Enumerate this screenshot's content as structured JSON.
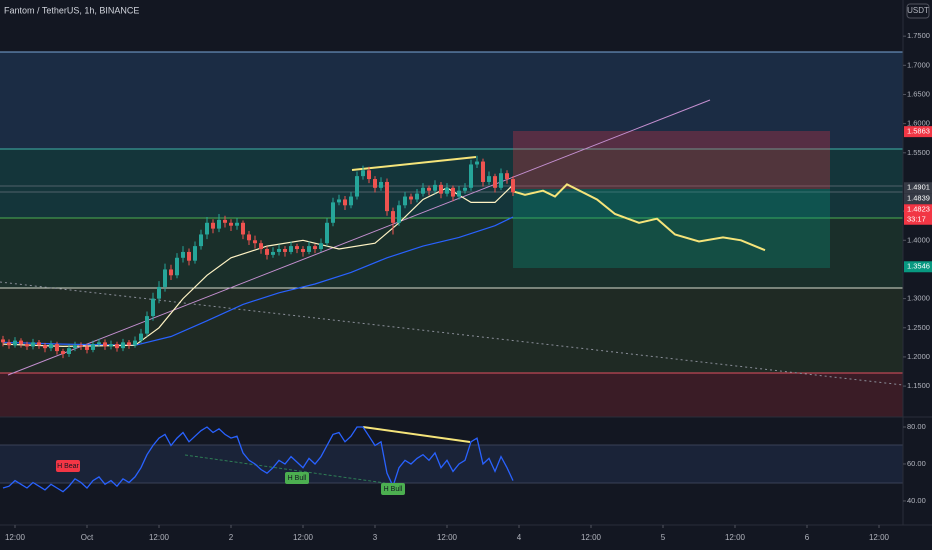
{
  "chart_data": {
    "type": "candlestick",
    "title": "Fantom / TetherUS, 1h, BINANCE",
    "currency_button": "USDT",
    "up_color": "#26a69a",
    "down_color": "#ef5350",
    "xlim": [
      -14.5,
      136
    ],
    "xticks": [
      {
        "value": -12,
        "label": "12:00"
      },
      {
        "value": 0,
        "label": "Oct"
      },
      {
        "value": 12,
        "label": "12:00"
      },
      {
        "value": 24,
        "label": "2"
      },
      {
        "value": 36,
        "label": "12:00"
      },
      {
        "value": 48,
        "label": "3"
      },
      {
        "value": 60,
        "label": "12:00"
      },
      {
        "value": 72,
        "label": "4"
      },
      {
        "value": 84,
        "label": "12:00"
      },
      {
        "value": 96,
        "label": "5"
      },
      {
        "value": 108,
        "label": "12:00"
      },
      {
        "value": 120,
        "label": "6"
      },
      {
        "value": 132,
        "label": "12:00"
      }
    ],
    "ylim": [
      1.097,
      1.812
    ],
    "yticks": [
      {
        "value": 1.75,
        "label": "1.7500"
      },
      {
        "value": 1.7,
        "label": "1.7000"
      },
      {
        "value": 1.65,
        "label": "1.6500"
      },
      {
        "value": 1.6,
        "label": "1.6000"
      },
      {
        "value": 1.55,
        "label": "1.5500"
      },
      {
        "value": 1.45,
        "label": "1.4500"
      },
      {
        "value": 1.4,
        "label": "1.4000"
      },
      {
        "value": 1.3,
        "label": "1.3000"
      },
      {
        "value": 1.25,
        "label": "1.2500"
      },
      {
        "value": 1.2,
        "label": "1.2000"
      },
      {
        "value": 1.15,
        "label": "1.1500"
      }
    ],
    "candles": [
      [
        -14,
        1.23,
        1.236,
        1.218,
        1.225
      ],
      [
        -13,
        1.225,
        1.23,
        1.214,
        1.22
      ],
      [
        -12,
        1.22,
        1.234,
        1.216,
        1.228
      ],
      [
        -11,
        1.228,
        1.232,
        1.216,
        1.222
      ],
      [
        -10,
        1.222,
        1.226,
        1.212,
        1.218
      ],
      [
        -9,
        1.218,
        1.231,
        1.213,
        1.225
      ],
      [
        -8,
        1.225,
        1.229,
        1.214,
        1.22
      ],
      [
        -7,
        1.22,
        1.224,
        1.208,
        1.215
      ],
      [
        -6,
        1.215,
        1.228,
        1.21,
        1.222
      ],
      [
        -5,
        1.222,
        1.226,
        1.204,
        1.21
      ],
      [
        -4,
        1.21,
        1.214,
        1.198,
        1.205
      ],
      [
        -3,
        1.205,
        1.221,
        1.2,
        1.215
      ],
      [
        -2,
        1.215,
        1.226,
        1.21,
        1.22
      ],
      [
        -1,
        1.22,
        1.225,
        1.212,
        1.218
      ],
      [
        0,
        1.218,
        1.222,
        1.206,
        1.212
      ],
      [
        1,
        1.212,
        1.228,
        1.208,
        1.222
      ],
      [
        2,
        1.222,
        1.231,
        1.217,
        1.225
      ],
      [
        3,
        1.225,
        1.23,
        1.212,
        1.218
      ],
      [
        4,
        1.218,
        1.228,
        1.213,
        1.222
      ],
      [
        5,
        1.222,
        1.226,
        1.209,
        1.215
      ],
      [
        6,
        1.215,
        1.231,
        1.21,
        1.225
      ],
      [
        7,
        1.225,
        1.229,
        1.214,
        1.22
      ],
      [
        8,
        1.22,
        1.235,
        1.216,
        1.228
      ],
      [
        9,
        1.228,
        1.248,
        1.224,
        1.24
      ],
      [
        10,
        1.24,
        1.278,
        1.235,
        1.27
      ],
      [
        11,
        1.27,
        1.31,
        1.262,
        1.3
      ],
      [
        12,
        1.3,
        1.33,
        1.292,
        1.32
      ],
      [
        13,
        1.32,
        1.36,
        1.312,
        1.35
      ],
      [
        14,
        1.35,
        1.358,
        1.332,
        1.34
      ],
      [
        15,
        1.34,
        1.378,
        1.335,
        1.37
      ],
      [
        16,
        1.37,
        1.39,
        1.362,
        1.38
      ],
      [
        17,
        1.38,
        1.386,
        1.357,
        1.365
      ],
      [
        18,
        1.365,
        1.398,
        1.36,
        1.39
      ],
      [
        19,
        1.39,
        1.418,
        1.384,
        1.41
      ],
      [
        20,
        1.41,
        1.44,
        1.402,
        1.43
      ],
      [
        21,
        1.43,
        1.436,
        1.412,
        1.42
      ],
      [
        22,
        1.42,
        1.445,
        1.414,
        1.435
      ],
      [
        23,
        1.435,
        1.442,
        1.422,
        1.43
      ],
      [
        24,
        1.43,
        1.436,
        1.416,
        1.425
      ],
      [
        25,
        1.425,
        1.438,
        1.418,
        1.43
      ],
      [
        26,
        1.43,
        1.434,
        1.402,
        1.41
      ],
      [
        27,
        1.41,
        1.416,
        1.392,
        1.4
      ],
      [
        28,
        1.4,
        1.408,
        1.386,
        1.395
      ],
      [
        29,
        1.395,
        1.4,
        1.377,
        1.385
      ],
      [
        30,
        1.385,
        1.39,
        1.367,
        1.375
      ],
      [
        31,
        1.375,
        1.388,
        1.37,
        1.38
      ],
      [
        32,
        1.38,
        1.393,
        1.374,
        1.385
      ],
      [
        33,
        1.385,
        1.39,
        1.372,
        1.38
      ],
      [
        34,
        1.38,
        1.398,
        1.376,
        1.39
      ],
      [
        35,
        1.39,
        1.394,
        1.378,
        1.385
      ],
      [
        36,
        1.385,
        1.39,
        1.372,
        1.38
      ],
      [
        37,
        1.38,
        1.398,
        1.376,
        1.39
      ],
      [
        38,
        1.39,
        1.394,
        1.378,
        1.385
      ],
      [
        39,
        1.385,
        1.403,
        1.38,
        1.395
      ],
      [
        40,
        1.395,
        1.438,
        1.39,
        1.43
      ],
      [
        41,
        1.43,
        1.473,
        1.424,
        1.465
      ],
      [
        42,
        1.465,
        1.478,
        1.46,
        1.47
      ],
      [
        43,
        1.47,
        1.476,
        1.452,
        1.46
      ],
      [
        44,
        1.46,
        1.483,
        1.455,
        1.475
      ],
      [
        45,
        1.475,
        1.518,
        1.47,
        1.51
      ],
      [
        46,
        1.51,
        1.528,
        1.504,
        1.52
      ],
      [
        47,
        1.52,
        1.526,
        1.498,
        1.505
      ],
      [
        48,
        1.505,
        1.51,
        1.482,
        1.49
      ],
      [
        49,
        1.49,
        1.508,
        1.485,
        1.5
      ],
      [
        50,
        1.5,
        1.506,
        1.442,
        1.45
      ],
      [
        51,
        1.45,
        1.456,
        1.41,
        1.43
      ],
      [
        52,
        1.43,
        1.468,
        1.425,
        1.46
      ],
      [
        53,
        1.46,
        1.483,
        1.455,
        1.475
      ],
      [
        54,
        1.475,
        1.48,
        1.462,
        1.47
      ],
      [
        55,
        1.47,
        1.488,
        1.465,
        1.48
      ],
      [
        56,
        1.48,
        1.498,
        1.475,
        1.49
      ],
      [
        57,
        1.49,
        1.494,
        1.477,
        1.485
      ],
      [
        58,
        1.485,
        1.503,
        1.48,
        1.495
      ],
      [
        59,
        1.495,
        1.5,
        1.472,
        1.48
      ],
      [
        60,
        1.48,
        1.498,
        1.475,
        1.49
      ],
      [
        61,
        1.49,
        1.494,
        1.467,
        1.475
      ],
      [
        62,
        1.475,
        1.493,
        1.47,
        1.485
      ],
      [
        63,
        1.485,
        1.498,
        1.48,
        1.49
      ],
      [
        64,
        1.49,
        1.538,
        1.485,
        1.53
      ],
      [
        65,
        1.53,
        1.545,
        1.524,
        1.535
      ],
      [
        66,
        1.535,
        1.54,
        1.492,
        1.5
      ],
      [
        67,
        1.5,
        1.518,
        1.495,
        1.51
      ],
      [
        68,
        1.51,
        1.514,
        1.482,
        1.49
      ],
      [
        69,
        1.49,
        1.523,
        1.486,
        1.515
      ],
      [
        70,
        1.515,
        1.52,
        1.497,
        1.505
      ],
      [
        71,
        1.505,
        1.51,
        1.476,
        1.4823
      ]
    ],
    "lines": [
      {
        "color": "#2962ff",
        "x": [
          -14,
          -4,
          8,
          14,
          20,
          26,
          32,
          38,
          44,
          50,
          56,
          62,
          68,
          71
        ],
        "values": [
          1.225,
          1.222,
          1.22,
          1.235,
          1.262,
          1.29,
          1.31,
          1.325,
          1.345,
          1.37,
          1.39,
          1.405,
          1.425,
          1.44
        ]
      },
      {
        "color": "#fff3c4",
        "x": [
          -14,
          -4,
          8,
          12,
          16,
          20,
          24,
          30,
          36,
          42,
          48,
          52,
          56,
          60,
          64,
          68,
          71
        ],
        "values": [
          1.222,
          1.218,
          1.22,
          1.25,
          1.3,
          1.34,
          1.37,
          1.39,
          1.4,
          1.385,
          1.395,
          1.43,
          1.47,
          1.49,
          1.465,
          1.465,
          1.495
        ]
      },
      {
        "color": "#f5e47a",
        "x": [
          71,
          73,
          76,
          78,
          80,
          85,
          88,
          92,
          95,
          98,
          102,
          106,
          109,
          113
        ],
        "values": [
          1.484,
          1.478,
          1.485,
          1.475,
          1.496,
          1.47,
          1.445,
          1.43,
          1.437,
          1.41,
          1.398,
          1.405,
          1.4,
          1.383
        ]
      }
    ],
    "price_tags": [
      {
        "value": 1.5863,
        "label": "1.5863",
        "color": "#f23645"
      },
      {
        "value": 1.4901,
        "label": "1.4901",
        "color": "#363a45"
      },
      {
        "value": 1.4839,
        "label": "1.4839",
        "color": "#363a45"
      },
      {
        "value": 1.4823,
        "label": "1.4823",
        "color": "#f23645",
        "countdown": "33:17"
      },
      {
        "value": 1.3546,
        "label": "1.3546",
        "color": "#089981"
      }
    ],
    "rsi": {
      "color": "#2962ff",
      "ylim": [
        27,
        85.4
      ],
      "yticks": [
        {
          "value": 80,
          "label": "80.00"
        },
        {
          "value": 60,
          "label": "60.00"
        },
        {
          "value": 40,
          "label": "40.00"
        }
      ],
      "values": [
        47,
        48,
        51,
        49,
        47,
        50,
        48,
        46,
        49,
        47,
        45,
        48,
        52,
        50,
        47,
        51,
        53,
        49,
        51,
        48,
        52,
        50,
        53,
        58,
        65,
        70,
        74,
        76,
        70,
        74,
        77,
        72,
        75,
        78,
        80,
        77,
        79,
        76,
        74,
        75,
        66,
        62,
        60,
        57,
        55,
        58,
        62,
        60,
        64,
        61,
        58,
        63,
        60,
        64,
        70,
        76,
        77,
        72,
        75,
        80,
        80,
        75,
        70,
        72,
        55,
        48,
        58,
        62,
        60,
        63,
        65,
        62,
        66,
        58,
        62,
        56,
        60,
        62,
        72,
        74,
        60,
        63,
        56,
        64,
        58,
        51
      ],
      "annotations": [
        "H Bear",
        "H Bull",
        "H Bull"
      ]
    }
  }
}
